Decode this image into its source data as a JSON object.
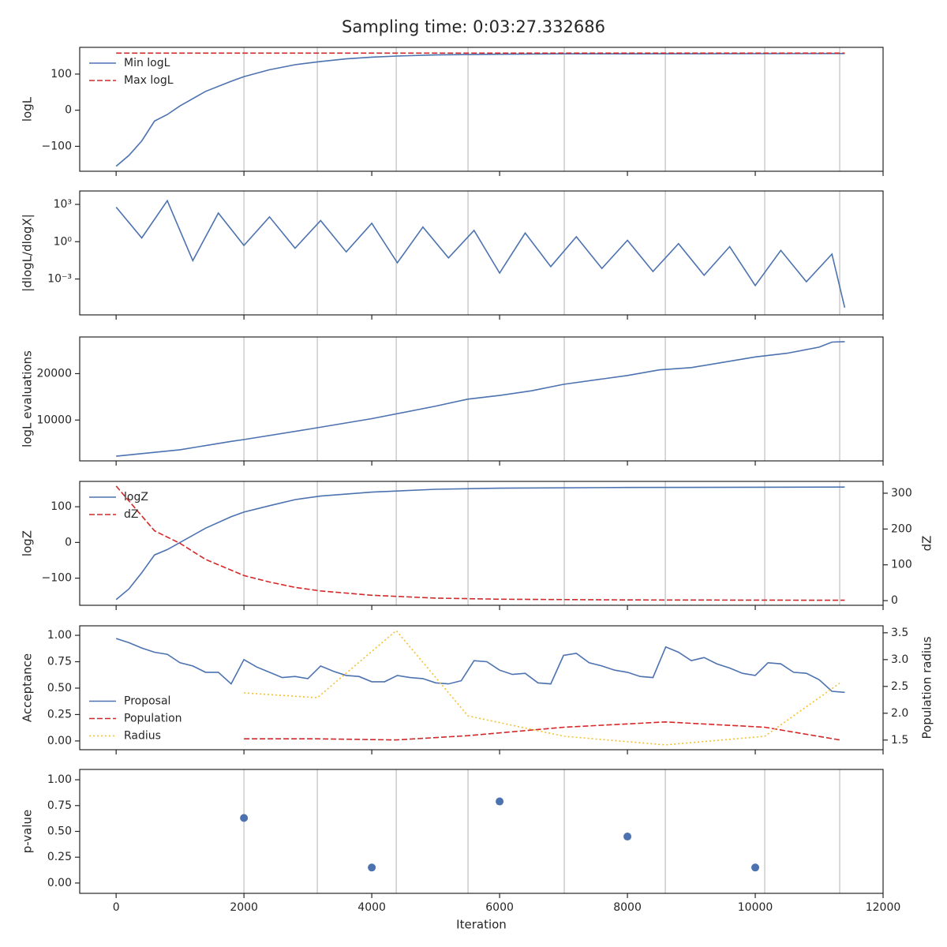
{
  "title": "Sampling time: 0:03:27.332686",
  "chart_data": [
    {
      "type": "line",
      "ylabel": "logL",
      "xlim": [
        -570,
        12000
      ],
      "ylim": [
        -169,
        174
      ],
      "yticks": [
        {
          "value": -100,
          "label": "−100"
        },
        0,
        100
      ],
      "legend": "upper left",
      "vlines": [
        2000,
        3148,
        4383,
        5506,
        7012,
        8593,
        10148,
        11321
      ],
      "series": [
        {
          "name": "Min logL",
          "color": "#4c72b0",
          "style": "solid",
          "x": [
            0,
            200,
            400,
            600,
            800,
            1000,
            1400,
            1800,
            2000,
            2400,
            2800,
            3200,
            3600,
            4000,
            4400,
            5000,
            6000,
            7000,
            8000,
            11400
          ],
          "values": [
            -155,
            -125,
            -85,
            -30,
            -12,
            12,
            52,
            80,
            93,
            112,
            126,
            135,
            142,
            147,
            150,
            153,
            155,
            156,
            156,
            157
          ]
        },
        {
          "name": "Max logL",
          "color": "#d62728",
          "style": "dashed",
          "x": [
            0,
            11400
          ],
          "values": [
            158,
            158
          ]
        }
      ]
    },
    {
      "type": "line",
      "ylabel": "|dlogL/dlogX|",
      "log_scale": true,
      "xlim": [
        -570,
        12000
      ],
      "ylim": [
        1.3e-06,
        12000
      ],
      "yticks": [
        {
          "value": 1000,
          "label": "10³"
        },
        {
          "value": 1,
          "label": "10⁰"
        },
        {
          "value": 0.001,
          "label": "10⁻³"
        }
      ],
      "vlines": [
        2000,
        3148,
        4383,
        5506,
        7012,
        8593,
        10148,
        11321
      ],
      "series": [
        {
          "color": "#4c72b0",
          "style": "solid",
          "x": [
            0,
            400,
            800,
            1200,
            1600,
            2000,
            2400,
            2800,
            3200,
            3600,
            4000,
            4400,
            4800,
            5200,
            5600,
            6000,
            6400,
            6800,
            7200,
            7600,
            8000,
            8400,
            8800,
            9200,
            9600,
            10000,
            10400,
            10800,
            11200,
            11400
          ],
          "values": [
            600,
            2,
            2000,
            0.03,
            200,
            0.5,
            100,
            0.3,
            50,
            0.15,
            30,
            0.02,
            15,
            0.05,
            8,
            0.003,
            5,
            0.01,
            2.5,
            0.007,
            1.3,
            0.004,
            0.7,
            0.002,
            0.4,
            0.0003,
            0.2,
            0.0006,
            0.1,
            5e-06
          ]
        }
      ]
    },
    {
      "type": "line",
      "ylabel": "logL evaluations",
      "xlim": [
        -570,
        12000
      ],
      "ylim": [
        1200,
        27900
      ],
      "yticks": [
        10000,
        20000
      ],
      "vlines": [
        2000,
        3148,
        4383,
        5506,
        7012,
        8593,
        10148,
        11321
      ],
      "series": [
        {
          "color": "#4c72b0",
          "style": "solid",
          "x": [
            0,
            1000,
            1800,
            2000,
            3000,
            4000,
            5000,
            5500,
            6000,
            6500,
            7000,
            8000,
            8500,
            9000,
            10000,
            10500,
            11000,
            11200,
            11400
          ],
          "values": [
            2200,
            3600,
            5400,
            5800,
            8000,
            10300,
            13000,
            14500,
            15300,
            16300,
            17700,
            19600,
            20800,
            21300,
            23600,
            24400,
            25700,
            26800,
            26900
          ]
        }
      ]
    },
    {
      "type": "line",
      "ylabel": "logZ",
      "y2label": "dZ",
      "xlim": [
        -570,
        12000
      ],
      "ylim": [
        -176,
        171
      ],
      "y2lim": [
        -13,
        333
      ],
      "yticks": [
        {
          "value": -100,
          "label": "−100"
        },
        0,
        100
      ],
      "y2ticks": [
        0,
        100,
        200,
        300
      ],
      "legend": "upper left",
      "vlines": [
        2000,
        3148,
        4383,
        5506,
        7012,
        8593,
        10148,
        11321
      ],
      "series": [
        {
          "name": "logZ",
          "color": "#4c72b0",
          "style": "solid",
          "x": [
            0,
            200,
            400,
            600,
            800,
            1000,
            1400,
            1800,
            2000,
            2400,
            2800,
            3200,
            4000,
            5000,
            6000,
            8000,
            11400
          ],
          "values": [
            -160,
            -130,
            -85,
            -35,
            -20,
            0,
            40,
            72,
            85,
            103,
            120,
            130,
            141,
            149,
            152,
            154,
            155
          ]
        },
        {
          "name": "dZ",
          "color": "#d62728",
          "style": "dashed",
          "axis": "y2",
          "x": [
            0,
            600,
            1000,
            1400,
            1800,
            2000,
            2400,
            2800,
            3200,
            4000,
            5000,
            6000,
            8000,
            11400
          ],
          "values": [
            320,
            195,
            160,
            115,
            85,
            70,
            52,
            37,
            27,
            15,
            7,
            4,
            2,
            1
          ]
        }
      ]
    },
    {
      "type": "line",
      "ylabel": "Acceptance",
      "y2label": "Population radius",
      "xlim": [
        -570,
        12000
      ],
      "ylim": [
        -0.083,
        1.09
      ],
      "y2lim": [
        1.32,
        3.63
      ],
      "yticks": [
        {
          "value": 0,
          "label": "0.00"
        },
        {
          "value": 0.25,
          "label": "0.25"
        },
        {
          "value": 0.5,
          "label": "0.50"
        },
        {
          "value": 0.75,
          "label": "0.75"
        },
        {
          "value": 1,
          "label": "1.00"
        }
      ],
      "y2ticks": [
        1.5,
        {
          "value": 2,
          "label": "2.0"
        },
        2.5,
        {
          "value": 3,
          "label": "3.0"
        },
        3.5
      ],
      "legend": "center left",
      "series": [
        {
          "name": "Proposal",
          "color": "#4c72b0",
          "style": "solid",
          "x": [
            0,
            200,
            400,
            600,
            800,
            1000,
            1200,
            1400,
            1600,
            1800,
            2000,
            2200,
            2400,
            2600,
            2800,
            3000,
            3200,
            3400,
            3600,
            3800,
            4000,
            4200,
            4400,
            4600,
            4800,
            5000,
            5200,
            5400,
            5600,
            5800,
            6000,
            6200,
            6400,
            6600,
            6800,
            7000,
            7200,
            7400,
            7600,
            7800,
            8000,
            8200,
            8400,
            8600,
            8800,
            9000,
            9200,
            9400,
            9600,
            9800,
            10000,
            10200,
            10400,
            10600,
            10800,
            11000,
            11200,
            11400
          ],
          "values": [
            0.97,
            0.93,
            0.88,
            0.84,
            0.82,
            0.74,
            0.71,
            0.65,
            0.65,
            0.54,
            0.77,
            0.7,
            0.65,
            0.6,
            0.61,
            0.59,
            0.71,
            0.66,
            0.62,
            0.61,
            0.56,
            0.56,
            0.62,
            0.6,
            0.59,
            0.55,
            0.54,
            0.57,
            0.76,
            0.75,
            0.67,
            0.63,
            0.64,
            0.55,
            0.54,
            0.81,
            0.83,
            0.74,
            0.71,
            0.67,
            0.65,
            0.61,
            0.6,
            0.89,
            0.84,
            0.76,
            0.79,
            0.73,
            0.69,
            0.64,
            0.62,
            0.74,
            0.73,
            0.65,
            0.64,
            0.58,
            0.47,
            0.46
          ]
        },
        {
          "name": "Population",
          "color": "#d62728",
          "style": "dashed",
          "x": [
            2000,
            3148,
            4383,
            5506,
            7012,
            8593,
            10148,
            11321
          ],
          "values": [
            0.02,
            0.02,
            0.01,
            0.05,
            0.13,
            0.18,
            0.13,
            0.01
          ]
        },
        {
          "name": "Radius",
          "color": "#f2c12e",
          "style": "dotted",
          "axis": "y2",
          "x": [
            2000,
            3148,
            4383,
            5506,
            7012,
            8593,
            10148,
            11321
          ],
          "values": [
            2.38,
            2.29,
            3.54,
            1.95,
            1.57,
            1.41,
            1.57,
            2.56
          ]
        }
      ]
    },
    {
      "type": "scatter",
      "ylabel": "p-value",
      "xlabel": "Iteration",
      "xlim": [
        -570,
        12000
      ],
      "ylim": [
        -0.1,
        1.1
      ],
      "xticks": [
        0,
        2000,
        4000,
        6000,
        8000,
        10000,
        12000
      ],
      "yticks": [
        {
          "value": 0,
          "label": "0.00"
        },
        {
          "value": 0.25,
          "label": "0.25"
        },
        {
          "value": 0.5,
          "label": "0.50"
        },
        {
          "value": 0.75,
          "label": "0.75"
        },
        {
          "value": 1,
          "label": "1.00"
        }
      ],
      "vlines": [
        2000,
        3148,
        4383,
        5506,
        7012,
        8593,
        10148,
        11321
      ],
      "series": [
        {
          "color": "#4c72b0",
          "x": [
            2000,
            4000,
            6000,
            8000,
            10000
          ],
          "values": [
            0.63,
            0.15,
            0.79,
            0.45,
            0.15
          ]
        }
      ]
    }
  ]
}
